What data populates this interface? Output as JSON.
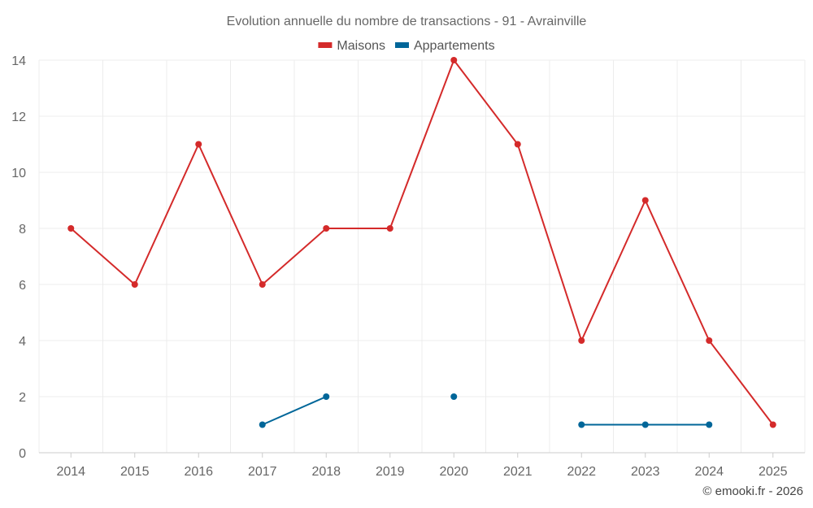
{
  "chart_data": {
    "type": "line",
    "title": "Evolution annuelle du nombre de transactions - 91 - Avrainville",
    "categories": [
      "2014",
      "2015",
      "2016",
      "2017",
      "2018",
      "2019",
      "2020",
      "2021",
      "2022",
      "2023",
      "2024",
      "2025"
    ],
    "ylim": [
      0,
      14
    ],
    "yticks": [
      0,
      2,
      4,
      6,
      8,
      10,
      12,
      14
    ],
    "grid": true,
    "legend_position": "top-center",
    "series": [
      {
        "name": "Maisons",
        "color": "#d42a2a",
        "values": [
          8,
          6,
          11,
          6,
          8,
          8,
          14,
          11,
          4,
          9,
          4,
          1
        ]
      },
      {
        "name": "Appartements",
        "color": "#006699",
        "values": [
          null,
          null,
          null,
          1,
          2,
          null,
          2,
          null,
          1,
          1,
          1,
          null
        ]
      }
    ]
  },
  "credit": "© emooki.fr - 2026"
}
